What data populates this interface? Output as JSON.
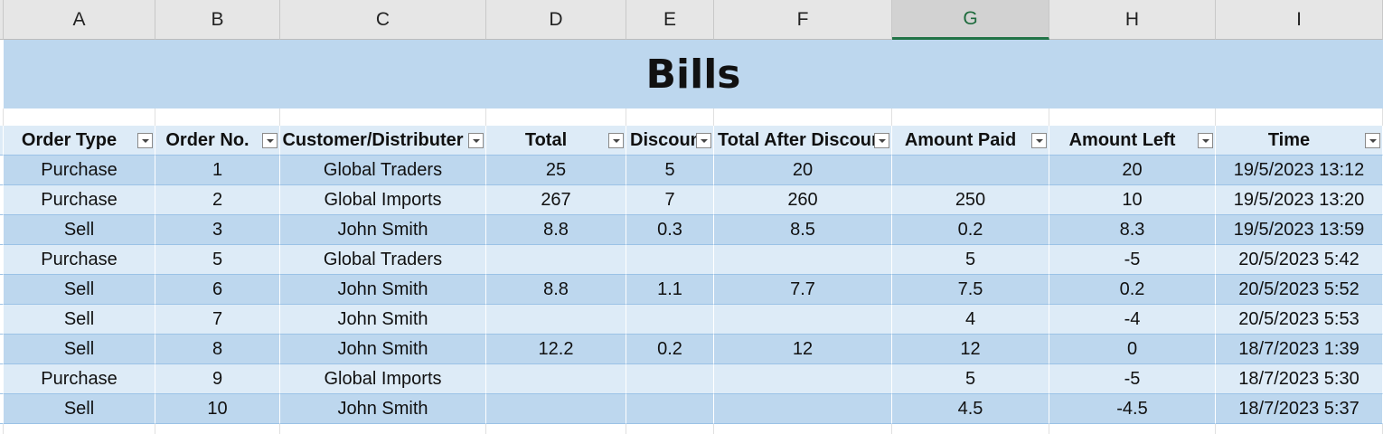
{
  "columns": [
    "A",
    "B",
    "C",
    "D",
    "E",
    "F",
    "G",
    "H",
    "I"
  ],
  "active_column": "G",
  "title": "Bills",
  "headers": [
    "Order Type",
    "Order No.",
    "Customer/Distributer",
    "Total",
    "Discount",
    "Total After Discount",
    "Amount Paid",
    "Amount Left",
    "Time"
  ],
  "rows": [
    [
      "Purchase",
      "1",
      "Global Traders",
      "25",
      "5",
      "20",
      "",
      "20",
      "19/5/2023 13:12"
    ],
    [
      "Purchase",
      "2",
      "Global Imports",
      "267",
      "7",
      "260",
      "250",
      "10",
      "19/5/2023 13:20"
    ],
    [
      "Sell",
      "3",
      "John Smith",
      "8.8",
      "0.3",
      "8.5",
      "0.2",
      "8.3",
      "19/5/2023 13:59"
    ],
    [
      "Purchase",
      "5",
      "Global Traders",
      "",
      "",
      "",
      "5",
      "-5",
      "20/5/2023 5:42"
    ],
    [
      "Sell",
      "6",
      "John Smith",
      "8.8",
      "1.1",
      "7.7",
      "7.5",
      "0.2",
      "20/5/2023 5:52"
    ],
    [
      "Sell",
      "7",
      "John Smith",
      "",
      "",
      "",
      "4",
      "-4",
      "20/5/2023 5:53"
    ],
    [
      "Sell",
      "8",
      "John Smith",
      "12.2",
      "0.2",
      "12",
      "12",
      "0",
      "18/7/2023 1:39"
    ],
    [
      "Purchase",
      "9",
      "Global Imports",
      "",
      "",
      "",
      "5",
      "-5",
      "18/7/2023 5:30"
    ],
    [
      "Sell",
      "10",
      "John Smith",
      "",
      "",
      "",
      "4.5",
      "-4.5",
      "18/7/2023 5:37"
    ]
  ]
}
